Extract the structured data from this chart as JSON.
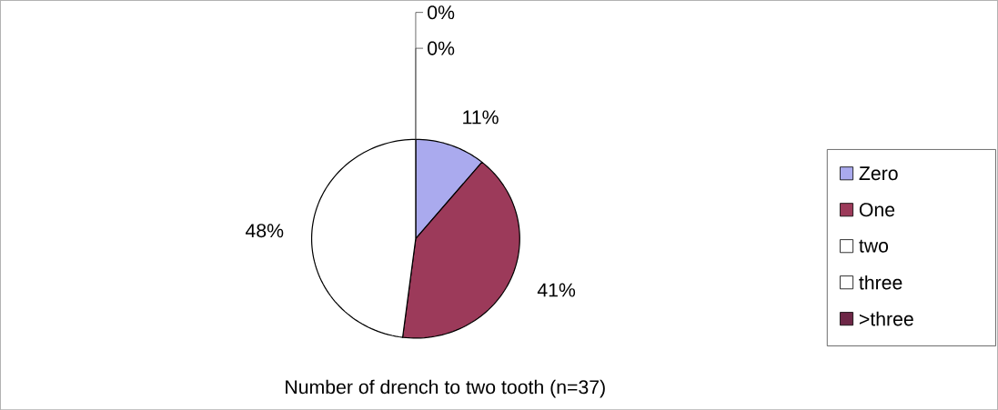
{
  "chart_data": {
    "type": "pie",
    "title": "Number of drench to two tooth (n=37)",
    "categories": [
      "Zero",
      "One",
      "two",
      "three",
      ">three"
    ],
    "values": [
      11,
      41,
      48,
      0,
      0
    ],
    "value_labels": [
      "11%",
      "41%",
      "48%",
      "0%",
      "0%"
    ],
    "colors": [
      "#aaaaee",
      "#9c3a5a",
      "#ffffff",
      "#ffffff",
      "#6e2747"
    ],
    "legend": "right"
  }
}
